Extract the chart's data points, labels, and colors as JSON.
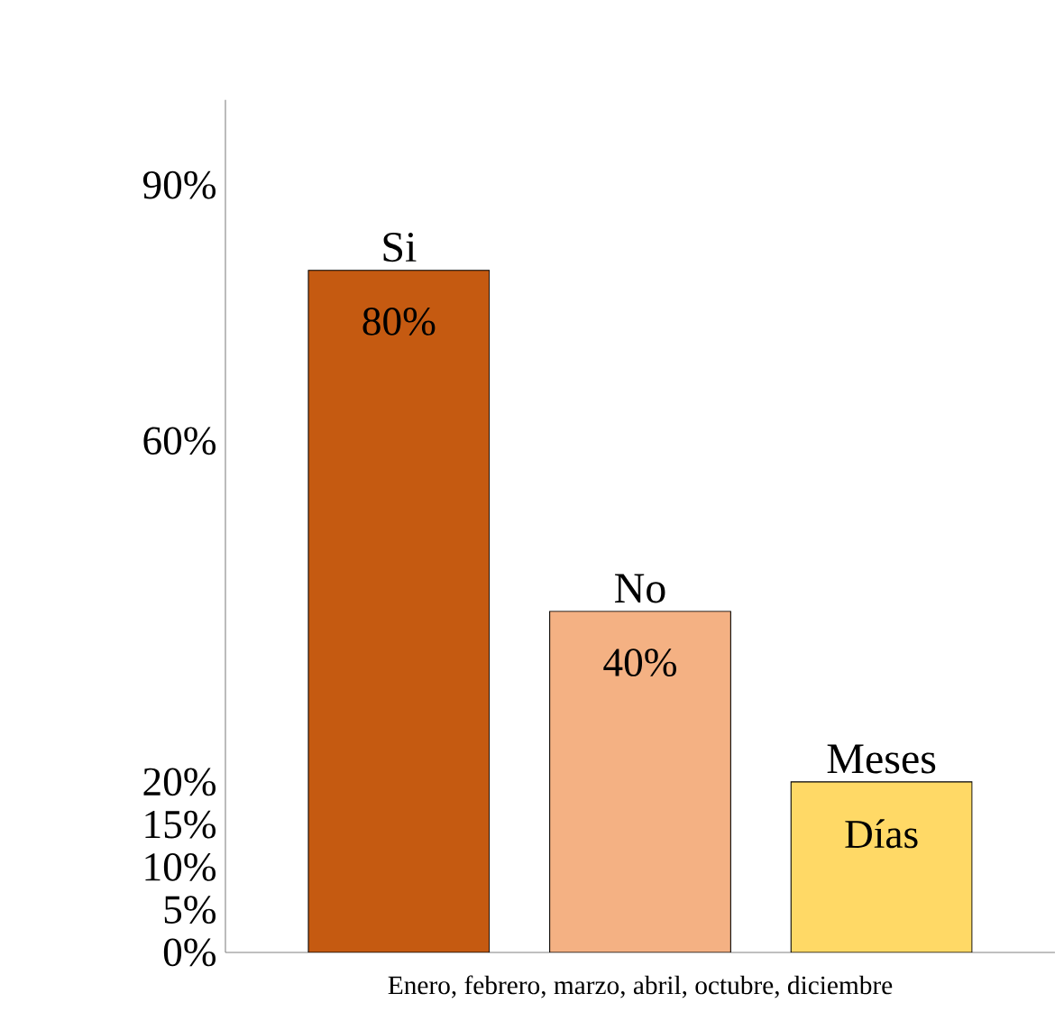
{
  "chart_data": {
    "type": "bar",
    "categories": [
      "Enero, febrero, marzo, abril, octubre, diciembre"
    ],
    "series": [
      {
        "name": "Si",
        "color": "#c55a11",
        "values": [
          80
        ],
        "value_labels": [
          "80%"
        ]
      },
      {
        "name": "No",
        "color": "#f4b183",
        "values": [
          40
        ],
        "value_labels": [
          "40%"
        ]
      },
      {
        "name": "Meses",
        "color": "#ffd966",
        "values": [
          20
        ],
        "value_labels": [
          "Días"
        ]
      }
    ],
    "ylim": [
      0,
      100
    ],
    "yticks": [
      {
        "value": 0,
        "label": "0%"
      },
      {
        "value": 5,
        "label": "5%"
      },
      {
        "value": 10,
        "label": "10%"
      },
      {
        "value": 15,
        "label": "15%"
      },
      {
        "value": 20,
        "label": "20%"
      },
      {
        "value": 60,
        "label": "60%"
      },
      {
        "value": 90,
        "label": "90%"
      }
    ],
    "grid": false
  }
}
